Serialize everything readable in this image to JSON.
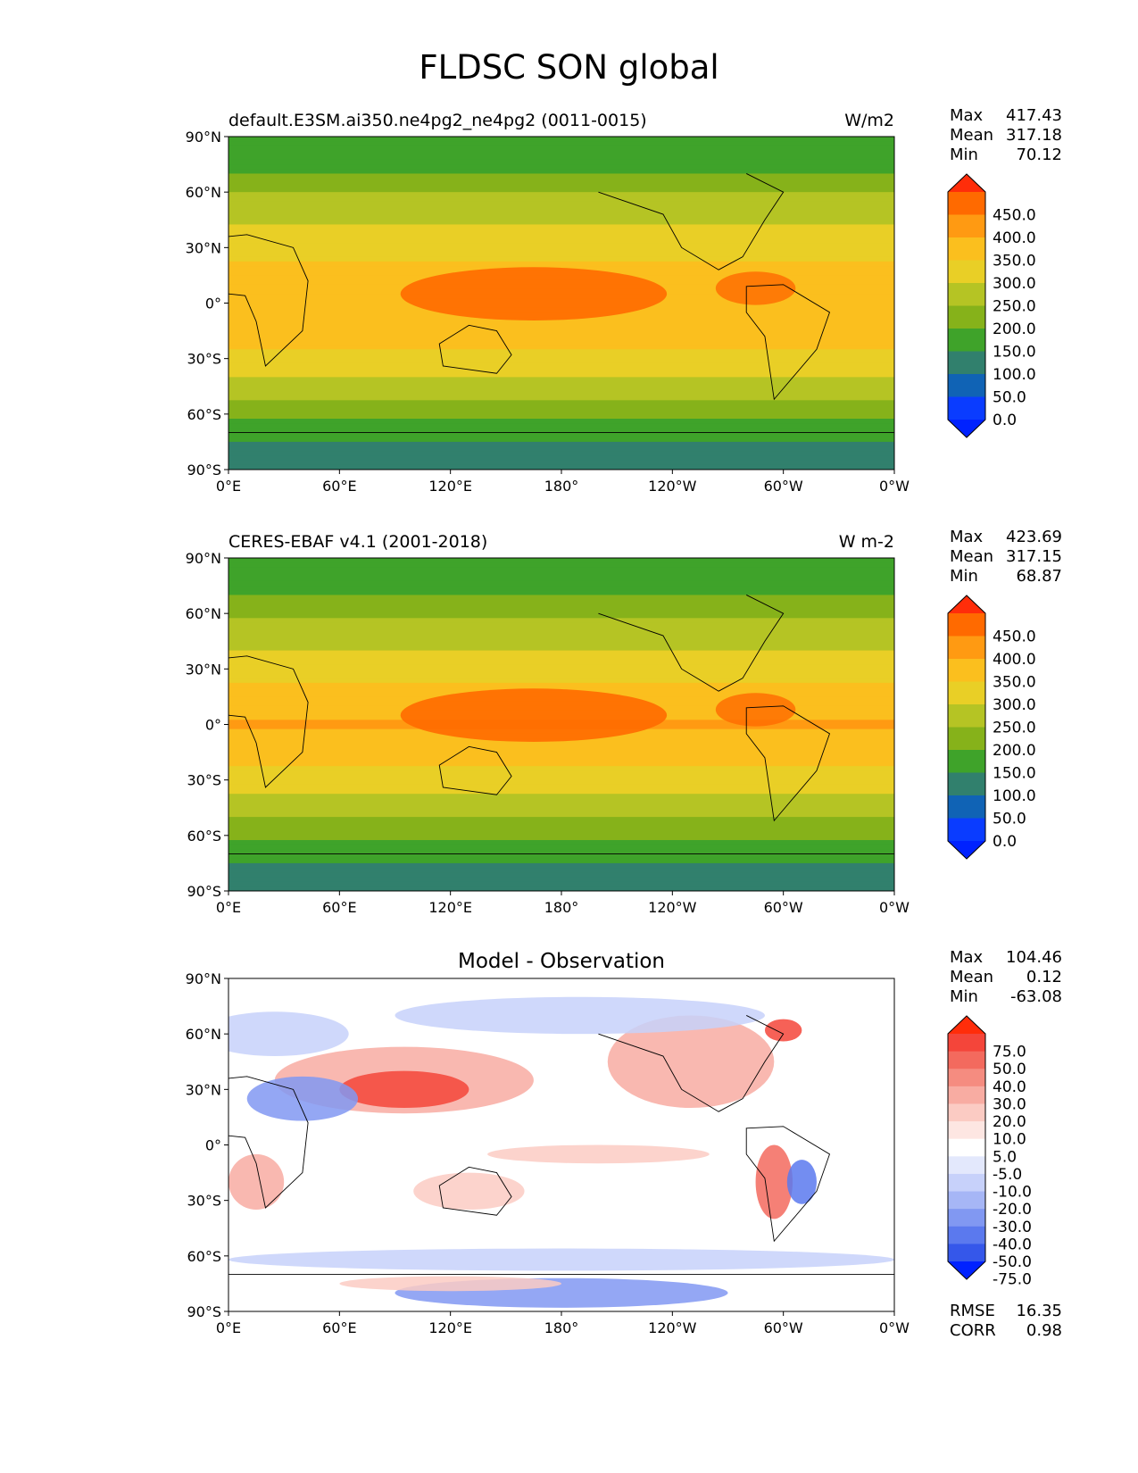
{
  "page_title": "FLDSC SON global",
  "chart_data": [
    {
      "type": "heatmap",
      "title": "default.E3SM.ai350.ne4pg2_ne4pg2 (0011-0015)",
      "units": "W/m2",
      "stats": {
        "max": "417.43",
        "mean": "317.18",
        "min": "70.12"
      },
      "xticks": [
        "0°E",
        "60°E",
        "120°E",
        "180°",
        "120°W",
        "60°W",
        "0°W"
      ],
      "yticks": [
        "90°N",
        "60°N",
        "30°N",
        "0°",
        "30°S",
        "60°S",
        "90°S"
      ],
      "xlim": [
        0,
        360
      ],
      "ylim": [
        -90,
        90
      ],
      "colorbar_labels": [
        "450.0",
        "400.0",
        "350.0",
        "300.0",
        "250.0",
        "200.0",
        "150.0",
        "100.0",
        "50.0",
        "0.0"
      ],
      "colorbar_colors": [
        "#ff2d0a",
        "#ff6a00",
        "#ff9a12",
        "#fbbf1e",
        "#e9cf26",
        "#b5c424",
        "#86b21a",
        "#3fa32a",
        "#31806d",
        "#1063b5",
        "#0a3cff",
        "#0022ff"
      ],
      "zonal_profile": [
        {
          "lat": 90,
          "value": 170
        },
        {
          "lat": 75,
          "value": 180
        },
        {
          "lat": 60,
          "value": 250
        },
        {
          "lat": 45,
          "value": 290
        },
        {
          "lat": 30,
          "value": 330
        },
        {
          "lat": 15,
          "value": 370
        },
        {
          "lat": 0,
          "value": 400
        },
        {
          "lat": -15,
          "value": 375
        },
        {
          "lat": -30,
          "value": 335
        },
        {
          "lat": -45,
          "value": 280
        },
        {
          "lat": -60,
          "value": 215
        },
        {
          "lat": -75,
          "value": 150
        },
        {
          "lat": -90,
          "value": 110
        }
      ]
    },
    {
      "type": "heatmap",
      "title": "CERES-EBAF v4.1 (2001-2018)",
      "units": "W m-2",
      "stats": {
        "max": "423.69",
        "mean": "317.15",
        "min": "68.87"
      },
      "xticks": [
        "0°E",
        "60°E",
        "120°E",
        "180°",
        "120°W",
        "60°W",
        "0°W"
      ],
      "yticks": [
        "90°N",
        "60°N",
        "30°N",
        "0°",
        "30°S",
        "60°S",
        "90°S"
      ],
      "xlim": [
        0,
        360
      ],
      "ylim": [
        -90,
        90
      ],
      "colorbar_labels": [
        "450.0",
        "400.0",
        "350.0",
        "300.0",
        "250.0",
        "200.0",
        "150.0",
        "100.0",
        "50.0",
        "0.0"
      ],
      "colorbar_colors": [
        "#ff2d0a",
        "#ff6a00",
        "#ff9a12",
        "#fbbf1e",
        "#e9cf26",
        "#b5c424",
        "#86b21a",
        "#3fa32a",
        "#31806d",
        "#1063b5",
        "#0a3cff",
        "#0022ff"
      ],
      "zonal_profile": [
        {
          "lat": 90,
          "value": 165
        },
        {
          "lat": 75,
          "value": 175
        },
        {
          "lat": 60,
          "value": 240
        },
        {
          "lat": 45,
          "value": 285
        },
        {
          "lat": 30,
          "value": 330
        },
        {
          "lat": 15,
          "value": 375
        },
        {
          "lat": 0,
          "value": 405
        },
        {
          "lat": -15,
          "value": 370
        },
        {
          "lat": -30,
          "value": 330
        },
        {
          "lat": -45,
          "value": 275
        },
        {
          "lat": -60,
          "value": 210
        },
        {
          "lat": -75,
          "value": 145
        },
        {
          "lat": -90,
          "value": 105
        }
      ]
    },
    {
      "type": "heatmap",
      "title": "Model - Observation",
      "units": "",
      "stats": {
        "max": "104.46",
        "mean": "0.12",
        "min": "-63.08"
      },
      "xticks": [
        "0°E",
        "60°E",
        "120°E",
        "180°",
        "120°W",
        "60°W",
        "0°W"
      ],
      "yticks": [
        "90°N",
        "60°N",
        "30°N",
        "0°",
        "30°S",
        "60°S",
        "90°S"
      ],
      "xlim": [
        0,
        360
      ],
      "ylim": [
        -90,
        90
      ],
      "colorbar_labels": [
        "75.0",
        "50.0",
        "40.0",
        "30.0",
        "20.0",
        "10.0",
        "5.0",
        "-5.0",
        "-10.0",
        "-20.0",
        "-30.0",
        "-40.0",
        "-50.0",
        "-75.0"
      ],
      "colorbar_colors": [
        "#ff2d0a",
        "#f4453a",
        "#f36a5e",
        "#f58c80",
        "#f8aca2",
        "#fbcbc3",
        "#fde6e2",
        "#ffffff",
        "#e3e8fc",
        "#c7d1fa",
        "#a6b6f6",
        "#8198f2",
        "#5b79ee",
        "#3557ea",
        "#0022ff"
      ],
      "rmse": "16.35",
      "corr": "0.98"
    }
  ]
}
